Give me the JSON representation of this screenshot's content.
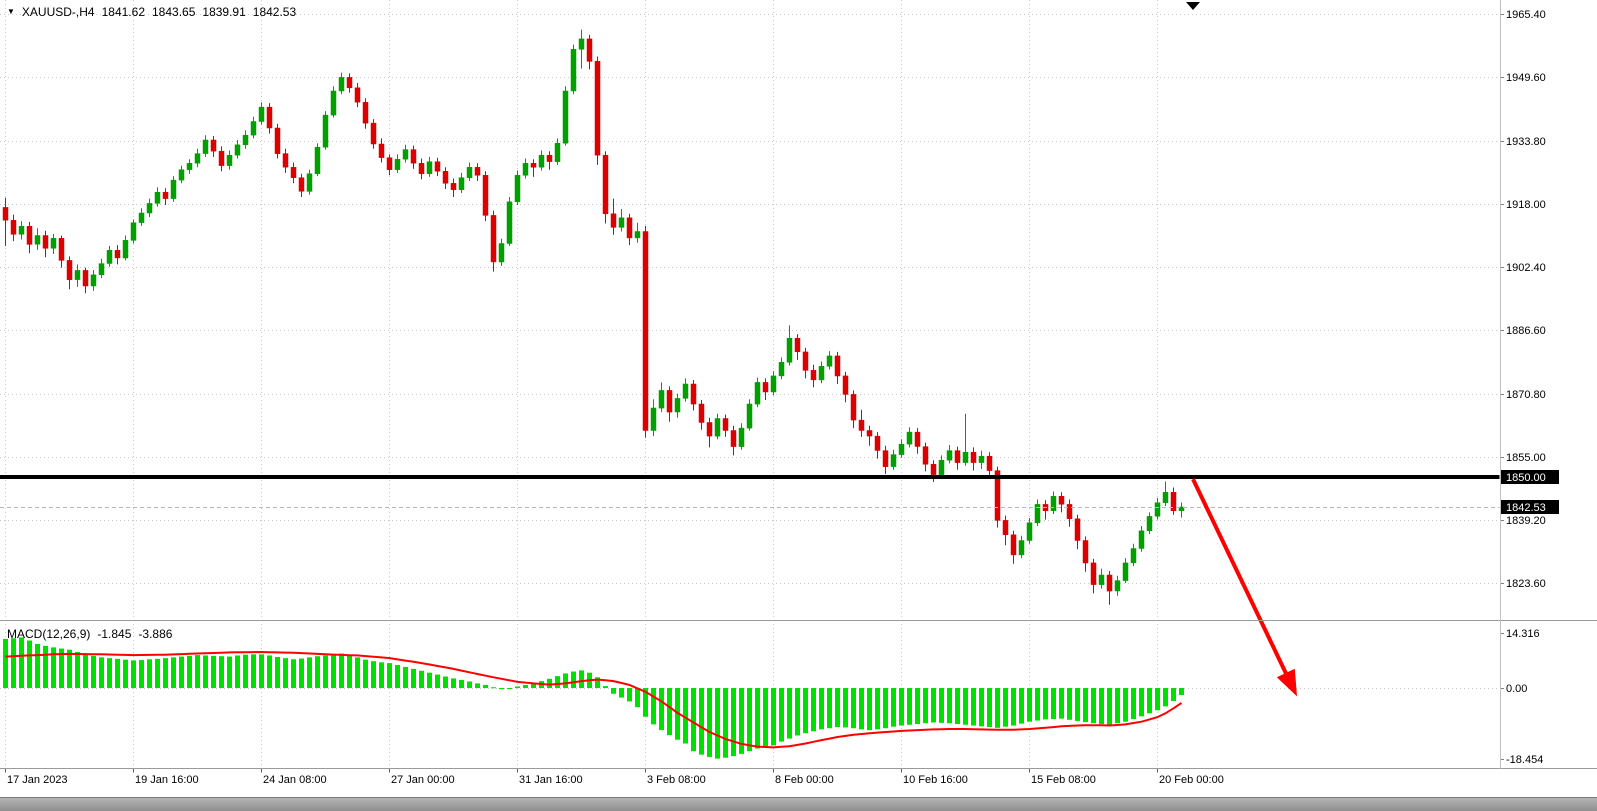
{
  "header": {
    "collapse_icon": "▼",
    "symbol_period": "XAUUSD-,H4",
    "open": "1841.62",
    "high": "1843.65",
    "low": "1839.91",
    "close": "1842.53"
  },
  "indicator_label": {
    "name": "MACD(12,26,9)",
    "main_value": "-1.845",
    "signal_value": "-3.886"
  },
  "price_axis": {
    "hline_label": "1850.00",
    "bid_label": "1842.53"
  },
  "colors": {
    "bull": "#00A000",
    "bear": "#DC0000",
    "histogram": "#00E000",
    "signal_line": "#FF0000",
    "hline": "#000000",
    "grid": "#C9C9C9",
    "arrow": "#FF0000",
    "axis_text": "#000000",
    "label_box_bg": "#000000",
    "label_box_text": "#FFFFFF"
  },
  "chart_data": {
    "type": "candlestick",
    "symbol": "XAUUSD-",
    "timeframe": "H4",
    "title": "XAUUSD- H4 with MACD(12,26,9)",
    "ohlc_current": {
      "open": 1841.62,
      "high": 1843.65,
      "low": 1839.91,
      "close": 1842.53
    },
    "ylim": [
      1823.6,
      1965.4
    ],
    "price_ticks": [
      1965.4,
      1949.6,
      1933.8,
      1918.0,
      1902.4,
      1886.6,
      1870.8,
      1855.0,
      1839.2,
      1823.6
    ],
    "time_ticks": [
      {
        "i": 0,
        "label": "17 Jan 2023"
      },
      {
        "i": 16,
        "label": "19 Jan 16:00"
      },
      {
        "i": 32,
        "label": "24 Jan 08:00"
      },
      {
        "i": 48,
        "label": "27 Jan 00:00"
      },
      {
        "i": 64,
        "label": "31 Jan 16:00"
      },
      {
        "i": 80,
        "label": "3 Feb 08:00"
      },
      {
        "i": 96,
        "label": "8 Feb 00:00"
      },
      {
        "i": 112,
        "label": "10 Feb 16:00"
      },
      {
        "i": 128,
        "label": "15 Feb 08:00"
      },
      {
        "i": 144,
        "label": "20 Feb 00:00"
      }
    ],
    "hline_price": 1850.0,
    "bid_price": 1842.53,
    "shift_marker_bar": 148.5,
    "arrow": {
      "from_bar": 148.5,
      "from_price": 1849.5,
      "to_bar": 161.5,
      "to_macd": -2.2
    },
    "bars": [
      [
        1917.2,
        1919.6,
        1907.6,
        1914.0
      ],
      [
        1914.0,
        1915.4,
        1908.8,
        1910.5
      ],
      [
        1910.5,
        1913.8,
        1909.2,
        1912.5
      ],
      [
        1912.5,
        1913.6,
        1905.8,
        1908.0
      ],
      [
        1908.0,
        1912.0,
        1906.6,
        1910.2
      ],
      [
        1910.2,
        1911.4,
        1904.8,
        1907.0
      ],
      [
        1907.0,
        1910.6,
        1905.6,
        1909.5
      ],
      [
        1909.5,
        1910.2,
        1902.2,
        1904.0
      ],
      [
        1904.0,
        1905.0,
        1896.8,
        1899.2
      ],
      [
        1899.2,
        1903.0,
        1897.4,
        1901.5
      ],
      [
        1901.5,
        1902.2,
        1895.8,
        1897.6
      ],
      [
        1897.6,
        1901.6,
        1896.4,
        1900.4
      ],
      [
        1900.4,
        1904.4,
        1899.6,
        1903.2
      ],
      [
        1903.2,
        1907.6,
        1902.4,
        1906.5
      ],
      [
        1906.5,
        1907.8,
        1903.0,
        1904.6
      ],
      [
        1904.6,
        1910.2,
        1904.0,
        1909.0
      ],
      [
        1909.0,
        1914.2,
        1908.2,
        1913.4
      ],
      [
        1913.4,
        1917.0,
        1912.6,
        1915.8
      ],
      [
        1915.8,
        1919.4,
        1914.8,
        1918.2
      ],
      [
        1918.2,
        1922.2,
        1917.4,
        1921.0
      ],
      [
        1921.0,
        1922.0,
        1917.8,
        1919.4
      ],
      [
        1919.4,
        1925.0,
        1918.6,
        1924.0
      ],
      [
        1924.0,
        1927.6,
        1923.2,
        1926.6
      ],
      [
        1926.6,
        1929.2,
        1925.6,
        1928.2
      ],
      [
        1928.2,
        1931.8,
        1927.2,
        1930.6
      ],
      [
        1930.6,
        1935.2,
        1929.8,
        1934.0
      ],
      [
        1934.0,
        1935.0,
        1929.8,
        1931.2
      ],
      [
        1931.2,
        1932.4,
        1926.2,
        1927.6
      ],
      [
        1927.6,
        1931.4,
        1926.6,
        1930.2
      ],
      [
        1930.2,
        1934.0,
        1929.4,
        1932.8
      ],
      [
        1932.8,
        1936.4,
        1931.8,
        1935.2
      ],
      [
        1935.2,
        1939.8,
        1934.4,
        1938.6
      ],
      [
        1938.6,
        1943.4,
        1937.8,
        1942.2
      ],
      [
        1942.2,
        1943.2,
        1935.6,
        1937.0
      ],
      [
        1937.0,
        1938.0,
        1929.4,
        1930.6
      ],
      [
        1930.6,
        1931.8,
        1925.8,
        1927.2
      ],
      [
        1927.2,
        1928.4,
        1923.2,
        1924.6
      ],
      [
        1924.6,
        1925.6,
        1919.8,
        1921.2
      ],
      [
        1921.2,
        1926.6,
        1920.4,
        1925.6
      ],
      [
        1925.6,
        1933.2,
        1925.0,
        1932.2
      ],
      [
        1932.2,
        1941.2,
        1931.6,
        1940.2
      ],
      [
        1940.2,
        1947.4,
        1939.6,
        1946.2
      ],
      [
        1946.2,
        1950.8,
        1945.4,
        1949.6
      ],
      [
        1949.6,
        1950.6,
        1945.8,
        1947.0
      ],
      [
        1947.0,
        1948.2,
        1942.2,
        1943.4
      ],
      [
        1943.4,
        1944.4,
        1936.8,
        1938.2
      ],
      [
        1938.2,
        1939.2,
        1931.8,
        1933.0
      ],
      [
        1933.0,
        1934.4,
        1928.4,
        1929.6
      ],
      [
        1929.6,
        1930.4,
        1925.2,
        1926.6
      ],
      [
        1926.6,
        1930.4,
        1925.8,
        1929.2
      ],
      [
        1929.2,
        1932.8,
        1928.4,
        1931.6
      ],
      [
        1931.6,
        1932.6,
        1926.8,
        1928.2
      ],
      [
        1928.2,
        1929.4,
        1924.2,
        1925.6
      ],
      [
        1925.6,
        1929.8,
        1924.8,
        1928.6
      ],
      [
        1928.6,
        1929.6,
        1925.0,
        1926.2
      ],
      [
        1926.2,
        1927.2,
        1921.8,
        1923.2
      ],
      [
        1923.2,
        1924.4,
        1919.8,
        1921.6
      ],
      [
        1921.6,
        1925.8,
        1920.8,
        1924.6
      ],
      [
        1924.6,
        1928.4,
        1923.8,
        1927.2
      ],
      [
        1927.2,
        1928.2,
        1923.8,
        1925.2
      ],
      [
        1925.2,
        1926.2,
        1913.8,
        1915.2
      ],
      [
        1915.2,
        1916.4,
        1901.2,
        1903.6
      ],
      [
        1903.6,
        1909.4,
        1902.6,
        1908.2
      ],
      [
        1908.2,
        1919.8,
        1907.6,
        1918.6
      ],
      [
        1918.6,
        1926.4,
        1917.8,
        1925.2
      ],
      [
        1925.2,
        1929.4,
        1924.4,
        1928.2
      ],
      [
        1928.2,
        1929.2,
        1924.8,
        1927.2
      ],
      [
        1927.2,
        1931.4,
        1926.4,
        1930.2
      ],
      [
        1930.2,
        1931.2,
        1926.6,
        1928.6
      ],
      [
        1928.6,
        1934.4,
        1927.8,
        1933.2
      ],
      [
        1933.2,
        1947.4,
        1932.6,
        1946.2
      ],
      [
        1946.2,
        1957.8,
        1945.4,
        1956.6
      ],
      [
        1956.6,
        1961.5,
        1951.8,
        1959.2
      ],
      [
        1959.2,
        1960.2,
        1951.6,
        1953.6
      ],
      [
        1953.6,
        1954.8,
        1927.8,
        1930.2
      ],
      [
        1930.2,
        1931.2,
        1913.2,
        1915.6
      ],
      [
        1915.6,
        1919.4,
        1910.4,
        1912.2
      ],
      [
        1912.2,
        1916.8,
        1911.2,
        1914.6
      ],
      [
        1914.6,
        1915.6,
        1907.8,
        1909.6
      ],
      [
        1909.6,
        1913.4,
        1908.4,
        1911.2
      ],
      [
        1911.2,
        1912.6,
        1859.8,
        1861.6
      ],
      [
        1861.6,
        1869.4,
        1860.2,
        1867.2
      ],
      [
        1867.2,
        1873.6,
        1866.2,
        1871.6
      ],
      [
        1871.6,
        1872.6,
        1863.8,
        1866.2
      ],
      [
        1866.2,
        1870.8,
        1864.8,
        1869.6
      ],
      [
        1869.6,
        1874.6,
        1868.8,
        1873.2
      ],
      [
        1873.2,
        1874.2,
        1866.6,
        1868.2
      ],
      [
        1868.2,
        1869.2,
        1861.8,
        1863.6
      ],
      [
        1863.6,
        1864.8,
        1857.4,
        1860.2
      ],
      [
        1860.2,
        1865.8,
        1859.4,
        1864.6
      ],
      [
        1864.6,
        1865.6,
        1860.0,
        1861.6
      ],
      [
        1861.6,
        1862.8,
        1855.4,
        1857.6
      ],
      [
        1857.6,
        1863.4,
        1856.8,
        1862.2
      ],
      [
        1862.2,
        1869.4,
        1861.6,
        1868.2
      ],
      [
        1868.2,
        1874.8,
        1867.4,
        1873.6
      ],
      [
        1873.6,
        1874.6,
        1869.2,
        1871.2
      ],
      [
        1871.2,
        1876.4,
        1870.4,
        1875.2
      ],
      [
        1875.2,
        1879.8,
        1874.4,
        1878.6
      ],
      [
        1878.6,
        1887.8,
        1877.8,
        1884.6
      ],
      [
        1884.6,
        1885.6,
        1879.2,
        1881.2
      ],
      [
        1881.2,
        1882.2,
        1874.6,
        1876.6
      ],
      [
        1876.6,
        1878.0,
        1872.4,
        1874.2
      ],
      [
        1874.2,
        1878.8,
        1873.4,
        1877.6
      ],
      [
        1877.6,
        1881.4,
        1876.8,
        1880.2
      ],
      [
        1880.2,
        1881.2,
        1873.2,
        1875.2
      ],
      [
        1875.2,
        1876.2,
        1868.6,
        1870.6
      ],
      [
        1870.6,
        1871.6,
        1862.2,
        1864.2
      ],
      [
        1864.2,
        1866.8,
        1860.0,
        1861.6
      ],
      [
        1861.6,
        1862.8,
        1857.8,
        1860.2
      ],
      [
        1860.2,
        1861.2,
        1854.6,
        1856.6
      ],
      [
        1856.6,
        1857.8,
        1850.8,
        1852.6
      ],
      [
        1852.6,
        1856.8,
        1851.8,
        1855.6
      ],
      [
        1855.6,
        1859.4,
        1854.8,
        1858.2
      ],
      [
        1858.2,
        1862.4,
        1857.4,
        1861.2
      ],
      [
        1861.2,
        1862.2,
        1855.8,
        1857.6
      ],
      [
        1857.6,
        1858.6,
        1851.4,
        1853.2
      ],
      [
        1853.2,
        1854.2,
        1848.8,
        1850.6
      ],
      [
        1850.6,
        1855.4,
        1849.8,
        1854.2
      ],
      [
        1854.2,
        1858.0,
        1853.4,
        1856.6
      ],
      [
        1856.6,
        1857.6,
        1851.8,
        1853.6
      ],
      [
        1853.6,
        1865.8,
        1852.8,
        1856.2
      ],
      [
        1856.2,
        1857.4,
        1851.6,
        1853.6
      ],
      [
        1853.6,
        1856.6,
        1852.0,
        1855.2
      ],
      [
        1855.2,
        1856.2,
        1849.8,
        1851.6
      ],
      [
        1851.6,
        1852.6,
        1837.4,
        1839.2
      ],
      [
        1839.2,
        1840.4,
        1833.0,
        1835.6
      ],
      [
        1835.6,
        1836.6,
        1828.4,
        1830.6
      ],
      [
        1830.6,
        1835.4,
        1829.8,
        1834.2
      ],
      [
        1834.2,
        1839.8,
        1833.4,
        1838.6
      ],
      [
        1838.6,
        1844.4,
        1837.8,
        1843.2
      ],
      [
        1843.2,
        1844.2,
        1839.4,
        1841.6
      ],
      [
        1841.6,
        1846.4,
        1840.8,
        1845.2
      ],
      [
        1845.2,
        1846.2,
        1841.2,
        1843.2
      ],
      [
        1843.2,
        1844.4,
        1837.6,
        1839.6
      ],
      [
        1839.6,
        1840.6,
        1832.0,
        1834.2
      ],
      [
        1834.2,
        1835.2,
        1826.4,
        1828.6
      ],
      [
        1828.6,
        1829.6,
        1821.0,
        1823.2
      ],
      [
        1823.2,
        1827.2,
        1822.2,
        1825.6
      ],
      [
        1825.6,
        1826.6,
        1818.2,
        1821.6
      ],
      [
        1821.6,
        1825.4,
        1820.4,
        1824.2
      ],
      [
        1824.2,
        1829.8,
        1823.6,
        1828.6
      ],
      [
        1828.6,
        1833.4,
        1827.8,
        1832.2
      ],
      [
        1832.2,
        1837.8,
        1831.4,
        1836.6
      ],
      [
        1836.6,
        1841.2,
        1835.8,
        1840.2
      ],
      [
        1840.2,
        1844.8,
        1839.4,
        1843.6
      ],
      [
        1843.6,
        1848.9,
        1842.8,
        1846.2
      ],
      [
        1846.2,
        1847.4,
        1840.6,
        1841.6
      ],
      [
        1841.62,
        1843.65,
        1839.91,
        1842.53
      ]
    ],
    "macd": {
      "type": "macd",
      "params": "12,26,9",
      "main_value": -1.845,
      "signal_value": -3.886,
      "ylim": [
        -18.454,
        14.316
      ],
      "ticks": [
        {
          "v": 14.316,
          "label": "14.316"
        },
        {
          "v": 0,
          "label": "0.00"
        },
        {
          "v": -18.454,
          "label": "-18.454"
        }
      ],
      "hist": [
        12.8,
        13.0,
        13.2,
        12.4,
        11.5,
        11.0,
        10.6,
        10.3,
        10.0,
        9.4,
        8.9,
        8.4,
        8.0,
        7.8,
        7.6,
        7.4,
        7.2,
        7.3,
        7.5,
        7.6,
        7.8,
        8.0,
        8.2,
        8.4,
        8.6,
        8.5,
        8.4,
        8.3,
        8.2,
        8.5,
        8.7,
        8.8,
        8.8,
        8.5,
        8.1,
        7.8,
        7.5,
        7.7,
        8.0,
        8.3,
        8.5,
        8.8,
        9.0,
        8.6,
        8.0,
        7.4,
        7.0,
        6.7,
        6.5,
        6.0,
        5.5,
        5.0,
        4.5,
        4.0,
        3.5,
        3.0,
        2.5,
        2.1,
        1.7,
        1.2,
        0.8,
        0.2,
        -0.3,
        0.0,
        0.4,
        0.8,
        1.2,
        1.8,
        2.4,
        3.1,
        3.8,
        4.3,
        4.6,
        4.0,
        2.8,
        0.5,
        -1.5,
        -2.5,
        -3.5,
        -5.0,
        -7.5,
        -9.5,
        -11.0,
        -12.3,
        -13.5,
        -14.5,
        -16.5,
        -17.4,
        -18.0,
        -18.45,
        -18.2,
        -17.8,
        -17.2,
        -16.5,
        -15.8,
        -15.4,
        -15.0,
        -14.0,
        -13.2,
        -12.4,
        -11.8,
        -11.3,
        -10.8,
        -10.5,
        -10.2,
        -10.3,
        -10.5,
        -10.8,
        -11.0,
        -10.8,
        -10.5,
        -10.1,
        -9.8,
        -9.6,
        -9.4,
        -9.2,
        -9.0,
        -9.1,
        -9.2,
        -9.4,
        -9.6,
        -9.8,
        -10.0,
        -10.2,
        -10.4,
        -10.1,
        -9.8,
        -9.3,
        -8.8,
        -8.5,
        -8.2,
        -8.1,
        -8.0,
        -8.3,
        -8.6,
        -8.9,
        -9.2,
        -9.4,
        -9.6,
        -9.2,
        -8.8,
        -8.1,
        -7.4,
        -6.6,
        -5.8,
        -4.8,
        -3.4,
        -1.845
      ],
      "signal": [
        8.2,
        8.3,
        8.4,
        8.5,
        8.6,
        8.7,
        8.8,
        8.85,
        8.9,
        8.87,
        8.85,
        8.82,
        8.8,
        8.75,
        8.7,
        8.65,
        8.6,
        8.62,
        8.65,
        8.67,
        8.7,
        8.78,
        8.85,
        8.93,
        9.0,
        9.08,
        9.15,
        9.22,
        9.3,
        9.32,
        9.35,
        9.37,
        9.4,
        9.35,
        9.3,
        9.25,
        9.2,
        9.1,
        9.0,
        8.9,
        8.8,
        8.72,
        8.65,
        8.57,
        8.5,
        8.33,
        8.15,
        7.98,
        7.8,
        7.48,
        7.15,
        6.83,
        6.5,
        6.13,
        5.75,
        5.38,
        5.0,
        4.55,
        4.1,
        3.65,
        3.2,
        2.8,
        2.4,
        2.0,
        1.6,
        1.4,
        1.2,
        1.05,
        0.9,
        1.05,
        1.2,
        1.5,
        1.8,
        2.0,
        2.2,
        2.0,
        1.8,
        1.3,
        0.8,
        -0.1,
        -1.0,
        -2.25,
        -3.5,
        -5.0,
        -6.5,
        -7.75,
        -9.0,
        -10.25,
        -11.5,
        -12.4,
        -13.3,
        -13.95,
        -14.6,
        -14.95,
        -15.3,
        -15.4,
        -15.5,
        -15.35,
        -15.2,
        -14.85,
        -14.5,
        -14.05,
        -13.6,
        -13.2,
        -12.8,
        -12.5,
        -12.2,
        -12.0,
        -11.8,
        -11.65,
        -11.5,
        -11.35,
        -11.2,
        -11.1,
        -11.0,
        -10.9,
        -10.8,
        -10.75,
        -10.7,
        -10.7,
        -10.7,
        -10.75,
        -10.8,
        -10.85,
        -10.9,
        -10.9,
        -10.9,
        -10.8,
        -10.7,
        -10.55,
        -10.4,
        -10.2,
        -10.0,
        -9.9,
        -9.8,
        -9.75,
        -9.7,
        -9.75,
        -9.8,
        -9.65,
        -9.5,
        -9.15,
        -8.8,
        -8.2,
        -7.6,
        -6.6,
        -5.3,
        -3.886
      ]
    }
  }
}
